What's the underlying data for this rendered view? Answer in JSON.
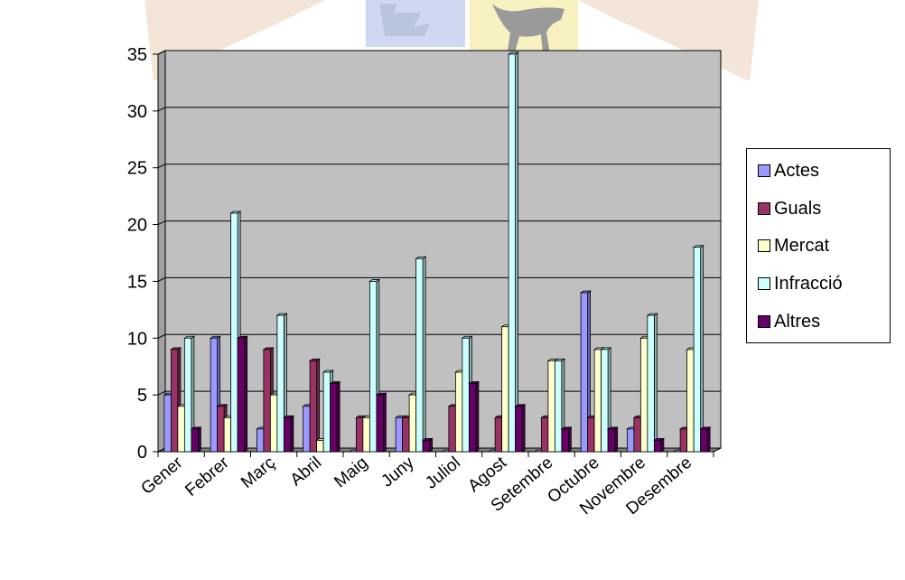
{
  "chart_data": {
    "type": "bar",
    "title": "",
    "xlabel": "",
    "ylabel": "",
    "ylim": [
      0,
      35
    ],
    "yticks": [
      0,
      5,
      10,
      15,
      20,
      25,
      30,
      35
    ],
    "grid": true,
    "legend_position": "right",
    "categories": [
      "Gener",
      "Febrer",
      "Març",
      "Abril",
      "Maig",
      "Juny",
      "Juliol",
      "Agost",
      "Setembre",
      "Octubre",
      "Novembre",
      "Desembre"
    ],
    "series": [
      {
        "name": "Actes",
        "color": "#9999ff",
        "values": [
          5,
          10,
          2,
          4,
          0,
          3,
          0,
          0,
          0,
          14,
          2,
          0
        ]
      },
      {
        "name": "Guals",
        "color": "#993366",
        "values": [
          9,
          4,
          9,
          8,
          3,
          3,
          4,
          3,
          3,
          3,
          3,
          2
        ]
      },
      {
        "name": "Mercat",
        "color": "#ffffcc",
        "values": [
          4,
          3,
          5,
          1,
          3,
          5,
          7,
          11,
          8,
          9,
          10,
          9
        ]
      },
      {
        "name": "Infracció",
        "color": "#ccffff",
        "values": [
          10,
          21,
          12,
          7,
          15,
          17,
          10,
          35,
          8,
          9,
          12,
          18
        ]
      },
      {
        "name": "Altres",
        "color": "#660066",
        "values": [
          2,
          10,
          3,
          6,
          5,
          1,
          6,
          4,
          2,
          2,
          1,
          2
        ]
      }
    ]
  },
  "colors": {
    "plot_background": "#c0c0c0",
    "plot_side_wall": "#a0a0a0",
    "floor": "#808080",
    "gridline": "#000000",
    "watermark_tan": "#f3e5d8",
    "watermark_blue": "#cfd8f0",
    "watermark_yellow": "#f7f0bf",
    "watermark_animal": "#9a9a9a"
  }
}
